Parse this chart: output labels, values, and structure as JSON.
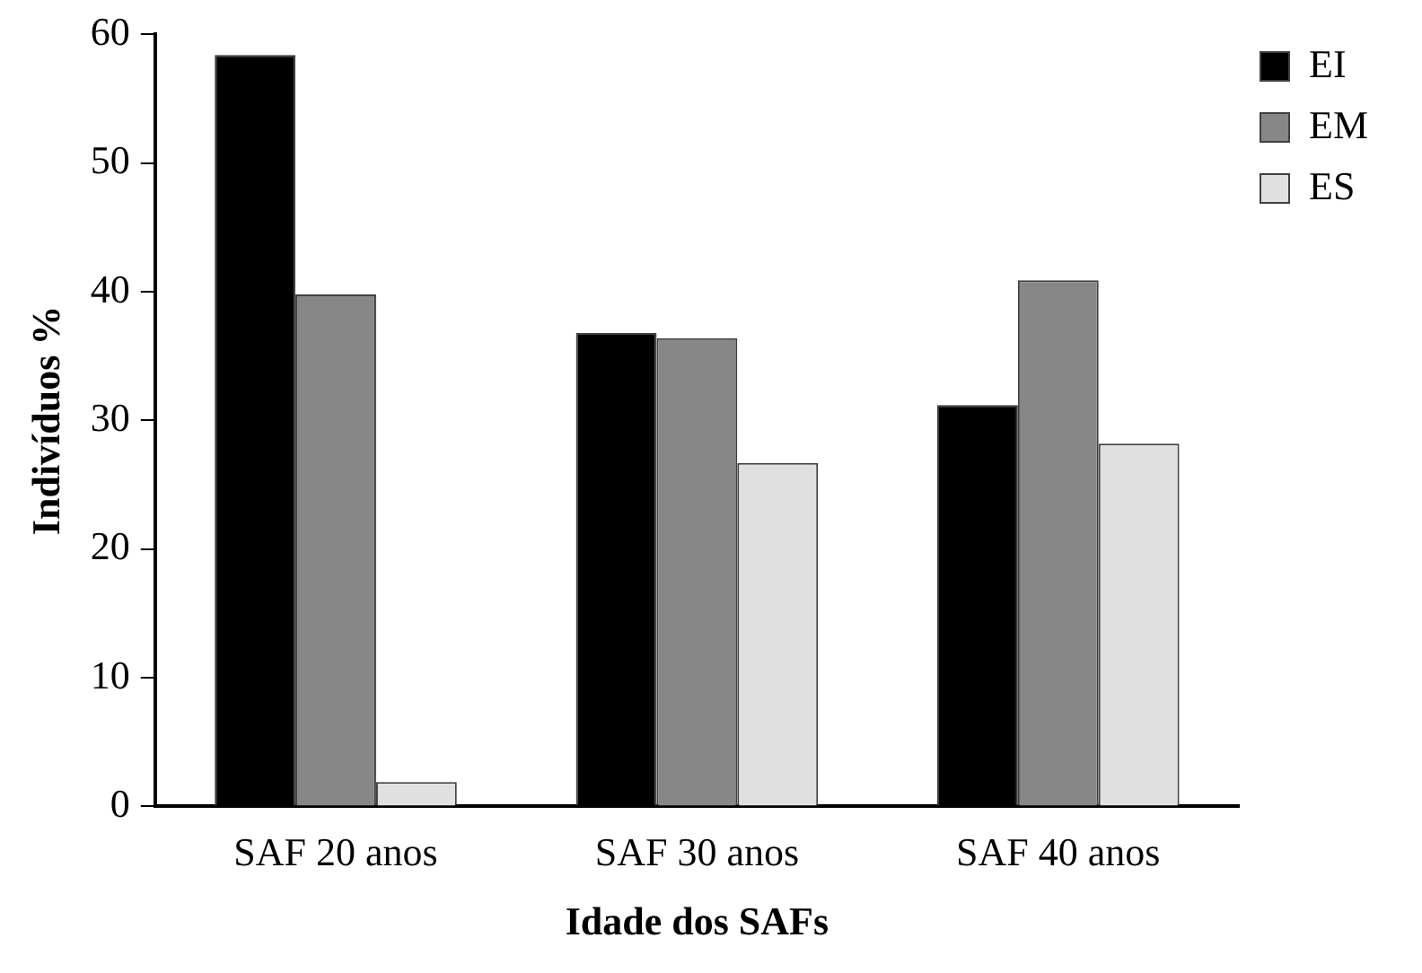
{
  "chart_data": {
    "type": "bar",
    "xlabel": "Idade dos SAFs",
    "ylabel": "Indivíduos %",
    "categories": [
      "SAF 20 anos",
      "SAF 30 anos",
      "SAF 40 anos"
    ],
    "series": [
      {
        "name": "EI",
        "color": "#000000",
        "values": [
          58.4,
          36.8,
          31.2
        ]
      },
      {
        "name": "EM",
        "color": "#878787",
        "values": [
          39.8,
          36.4,
          40.9
        ]
      },
      {
        "name": "ES",
        "color": "#e0e0e0",
        "values": [
          1.9,
          26.7,
          28.2
        ]
      }
    ],
    "ylim": [
      0,
      60
    ],
    "yticks": [
      0,
      10,
      20,
      30,
      40,
      50,
      60
    ],
    "grid": false,
    "legend": "top right"
  }
}
